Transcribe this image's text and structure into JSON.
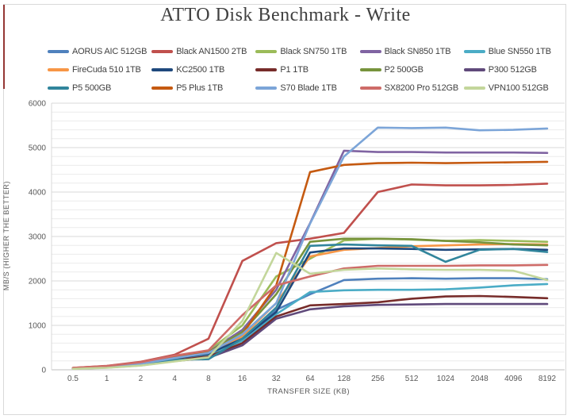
{
  "page": {
    "border_color": "#d9d9d9",
    "left_edge_artifact_color": "#943634",
    "background": "#ffffff"
  },
  "chart_data": {
    "type": "line",
    "title": "ATTO Disk Benchmark - Write",
    "xlabel": "TRANSFER SIZE (KB)",
    "ylabel": "MB/S (HIGHER THE BETTER)",
    "legend_position": "top",
    "grid": "horizontal",
    "ylim": [
      0,
      6000
    ],
    "y_major_ticks": [
      0,
      1000,
      2000,
      3000,
      4000,
      5000,
      6000
    ],
    "y_minor_step": 200,
    "categories": [
      "0.5",
      "1",
      "2",
      "4",
      "8",
      "16",
      "32",
      "64",
      "128",
      "256",
      "512",
      "1024",
      "2048",
      "4096",
      "8192"
    ],
    "series": [
      {
        "name": "AORUS AIC 512GB",
        "color": "#4F81BD",
        "values": [
          30,
          60,
          120,
          235,
          330,
          700,
          1350,
          1700,
          2020,
          2050,
          2060,
          2050,
          2060,
          2060,
          2040
        ]
      },
      {
        "name": "Black AN1500 2TB",
        "color": "#C0504D",
        "values": [
          45,
          90,
          180,
          340,
          700,
          2450,
          2850,
          2950,
          3080,
          4000,
          4170,
          4150,
          4150,
          4160,
          4190
        ]
      },
      {
        "name": "Black SN750 1TB",
        "color": "#9BBB59",
        "values": [
          40,
          80,
          160,
          310,
          430,
          1000,
          2100,
          2500,
          2910,
          2950,
          2930,
          2900,
          2920,
          2900,
          2880
        ]
      },
      {
        "name": "Black SN850 1TB",
        "color": "#8064A2",
        "values": [
          35,
          70,
          140,
          280,
          400,
          900,
          1800,
          3300,
          4930,
          4900,
          4900,
          4890,
          4890,
          4890,
          4880
        ]
      },
      {
        "name": "Blue SN550 1TB",
        "color": "#4BACC6",
        "values": [
          30,
          62,
          125,
          245,
          345,
          650,
          1250,
          1750,
          1790,
          1800,
          1800,
          1810,
          1850,
          1900,
          1930
        ]
      },
      {
        "name": "FireCuda 510 1TB",
        "color": "#F79646",
        "values": [
          38,
          75,
          150,
          295,
          410,
          750,
          1500,
          2550,
          2700,
          2740,
          2780,
          2800,
          2820,
          2830,
          2820
        ]
      },
      {
        "name": "KC2500 1TB",
        "color": "#1F497D",
        "values": [
          32,
          65,
          130,
          255,
          360,
          700,
          1300,
          2640,
          2730,
          2730,
          2720,
          2700,
          2710,
          2720,
          2700
        ]
      },
      {
        "name": "P1 1TB",
        "color": "#772C2A",
        "values": [
          28,
          55,
          110,
          215,
          300,
          600,
          1200,
          1450,
          1480,
          1520,
          1600,
          1650,
          1660,
          1640,
          1610
        ]
      },
      {
        "name": "P2 500GB",
        "color": "#77933C",
        "values": [
          36,
          72,
          145,
          285,
          400,
          850,
          1700,
          2880,
          2950,
          2950,
          2940,
          2900,
          2870,
          2820,
          2800
        ]
      },
      {
        "name": "P300 512GB",
        "color": "#604A7B",
        "values": [
          25,
          50,
          100,
          195,
          270,
          550,
          1150,
          1360,
          1430,
          1460,
          1470,
          1480,
          1480,
          1480,
          1480
        ]
      },
      {
        "name": "P5 500GB",
        "color": "#31859C",
        "values": [
          28,
          56,
          115,
          225,
          240,
          700,
          1400,
          2790,
          2820,
          2800,
          2790,
          2430,
          2700,
          2720,
          2650
        ]
      },
      {
        "name": "P5 Plus 1TB",
        "color": "#C55A11",
        "values": [
          35,
          70,
          140,
          280,
          390,
          800,
          1900,
          4450,
          4610,
          4650,
          4660,
          4650,
          4660,
          4670,
          4680
        ]
      },
      {
        "name": "S70 Blade 1TB",
        "color": "#7CA5D8",
        "values": [
          33,
          66,
          135,
          265,
          380,
          800,
          1500,
          3290,
          4800,
          5450,
          5440,
          5450,
          5390,
          5400,
          5430
        ]
      },
      {
        "name": "SX8200 Pro 512GB",
        "color": "#CE6B68",
        "values": [
          42,
          85,
          170,
          320,
          440,
          1230,
          1900,
          2100,
          2280,
          2340,
          2340,
          2340,
          2350,
          2350,
          2360
        ]
      },
      {
        "name": "VPN100 512GB",
        "color": "#C3D69B",
        "values": [
          22,
          45,
          95,
          190,
          280,
          1100,
          2630,
          2160,
          2250,
          2280,
          2260,
          2250,
          2250,
          2230,
          2020
        ]
      }
    ],
    "plot_style": {
      "minor_grid_color": "#ebebeb",
      "major_grid_color": "#d9d9d9",
      "axis_line_color": "#bfbfbf",
      "line_width": 2.6
    }
  }
}
